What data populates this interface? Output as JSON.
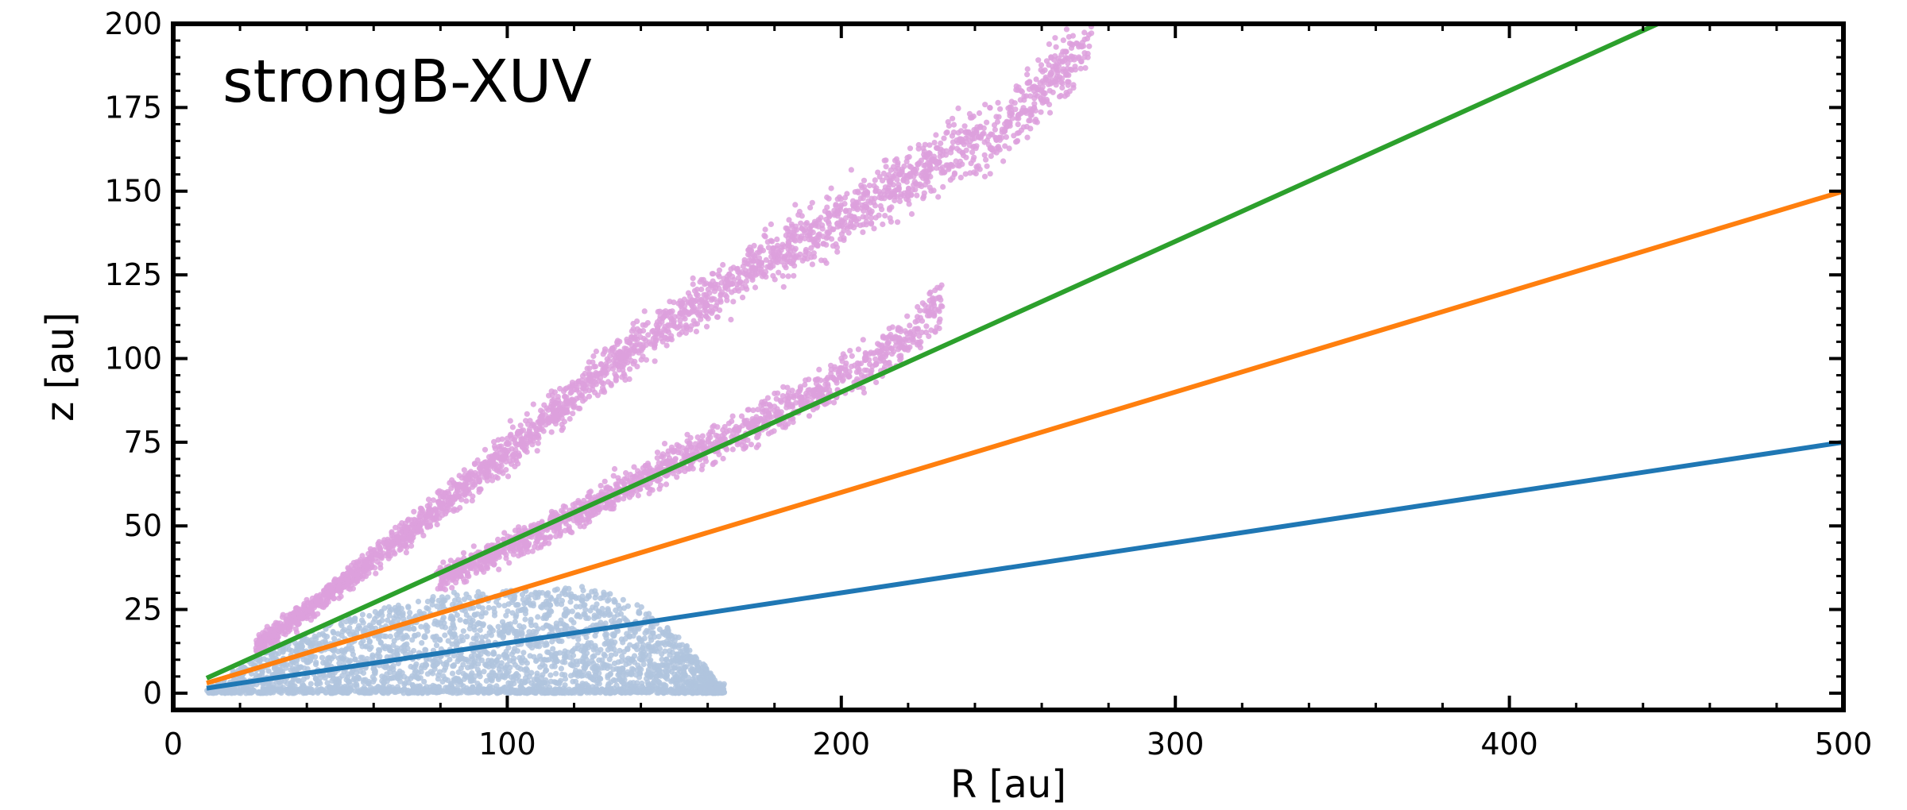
{
  "chart_data": {
    "type": "scatter",
    "title": "",
    "annotation": "strongB-XUV",
    "xlabel": "R [au]",
    "ylabel": "z [au]",
    "xlim": [
      0,
      500
    ],
    "ylim": [
      -5,
      200
    ],
    "xticks": [
      0,
      100,
      200,
      300,
      400,
      500
    ],
    "yticks": [
      0,
      25,
      50,
      75,
      100,
      125,
      150,
      175,
      200
    ],
    "grid": false,
    "legend": "none",
    "scatter_series": [
      {
        "color": "#b0c4de",
        "region": "disk",
        "x_range": [
          10,
          165
        ],
        "z_range": [
          0,
          38
        ],
        "envelope": [
          [
            10,
            2
          ],
          [
            30,
            14
          ],
          [
            50,
            22
          ],
          [
            80,
            30
          ],
          [
            110,
            31
          ],
          [
            125,
            32
          ],
          [
            140,
            26
          ],
          [
            150,
            18
          ],
          [
            158,
            10
          ],
          [
            163,
            3
          ]
        ]
      },
      {
        "color": "#dda0dd",
        "region": "wind-upper-branch",
        "points": [
          [
            25,
            14
          ],
          [
            50,
            32
          ],
          [
            75,
            52
          ],
          [
            100,
            72
          ],
          [
            125,
            93
          ],
          [
            150,
            112
          ],
          [
            175,
            128
          ],
          [
            200,
            142
          ],
          [
            225,
            156
          ],
          [
            250,
            170
          ],
          [
            265,
            185
          ],
          [
            275,
            197
          ]
        ]
      },
      {
        "color": "#dda0dd",
        "region": "wind-lower-branch",
        "points": [
          [
            80,
            34
          ],
          [
            110,
            48
          ],
          [
            140,
            64
          ],
          [
            170,
            78
          ],
          [
            200,
            94
          ],
          [
            220,
            106
          ],
          [
            230,
            117
          ]
        ]
      }
    ],
    "line_series": [
      {
        "color": "#2ca02c",
        "x": [
          10,
          500
        ],
        "y": [
          4.5,
          225
        ]
      },
      {
        "color": "#ff7f0e",
        "x": [
          10,
          500
        ],
        "y": [
          3,
          150
        ]
      },
      {
        "color": "#1f77b4",
        "x": [
          10,
          500
        ],
        "y": [
          1.5,
          75
        ]
      }
    ]
  }
}
